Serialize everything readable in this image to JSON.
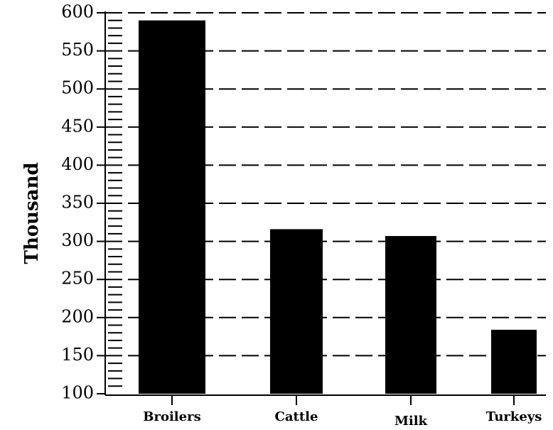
{
  "chart_data": {
    "type": "bar",
    "title": "",
    "xlabel": "",
    "ylabel": "Thousand",
    "categories": [
      "Broilers",
      "Cattle",
      "Milk",
      "Turkeys"
    ],
    "values": [
      590,
      316,
      307,
      184
    ],
    "ylim": [
      100,
      600
    ],
    "yticks": [
      "100",
      "150",
      "200",
      "250",
      "300",
      "350",
      "400",
      "450",
      "500",
      "550",
      "600"
    ],
    "grid": "dashed-horizontal",
    "legend": "none",
    "bar_color": "#000000"
  }
}
